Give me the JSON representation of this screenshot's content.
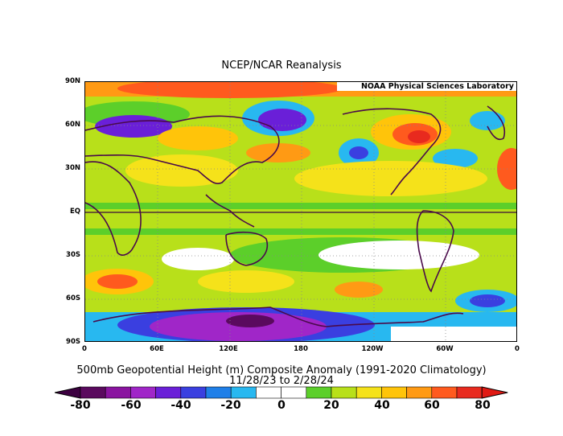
{
  "title": "NCEP/NCAR Reanalysis",
  "lab_label": "NOAA Physical Sciences Laboratory",
  "lat_labels": [
    "90N",
    "60N",
    "30N",
    "EQ",
    "30S",
    "60S",
    "90S"
  ],
  "lon_labels": [
    "0",
    "60E",
    "120E",
    "180",
    "120W",
    "60W",
    "0"
  ],
  "subtitle_line1": "500mb Geopotential Height (m) Composite Anomaly (1991-2020 Climatology)",
  "subtitle_line2": "11/28/23  to 2/28/24",
  "colorbar": {
    "labels": [
      "-80",
      "-60",
      "-40",
      "-20",
      "0",
      "20",
      "40",
      "60",
      "80"
    ],
    "colors": [
      "#5a0a5e",
      "#8a14a0",
      "#a026c8",
      "#6a1fd8",
      "#3a3fe0",
      "#1f7fe8",
      "#28b8f0",
      "#ffffff",
      "#ffffff",
      "#5ccf2a",
      "#b8e01a",
      "#f5e21a",
      "#ffc40a",
      "#ff9a14",
      "#ff5a1e",
      "#e82a1e"
    ],
    "low_end_color": "#3c0040",
    "high_end_color": "#e01a14"
  }
}
